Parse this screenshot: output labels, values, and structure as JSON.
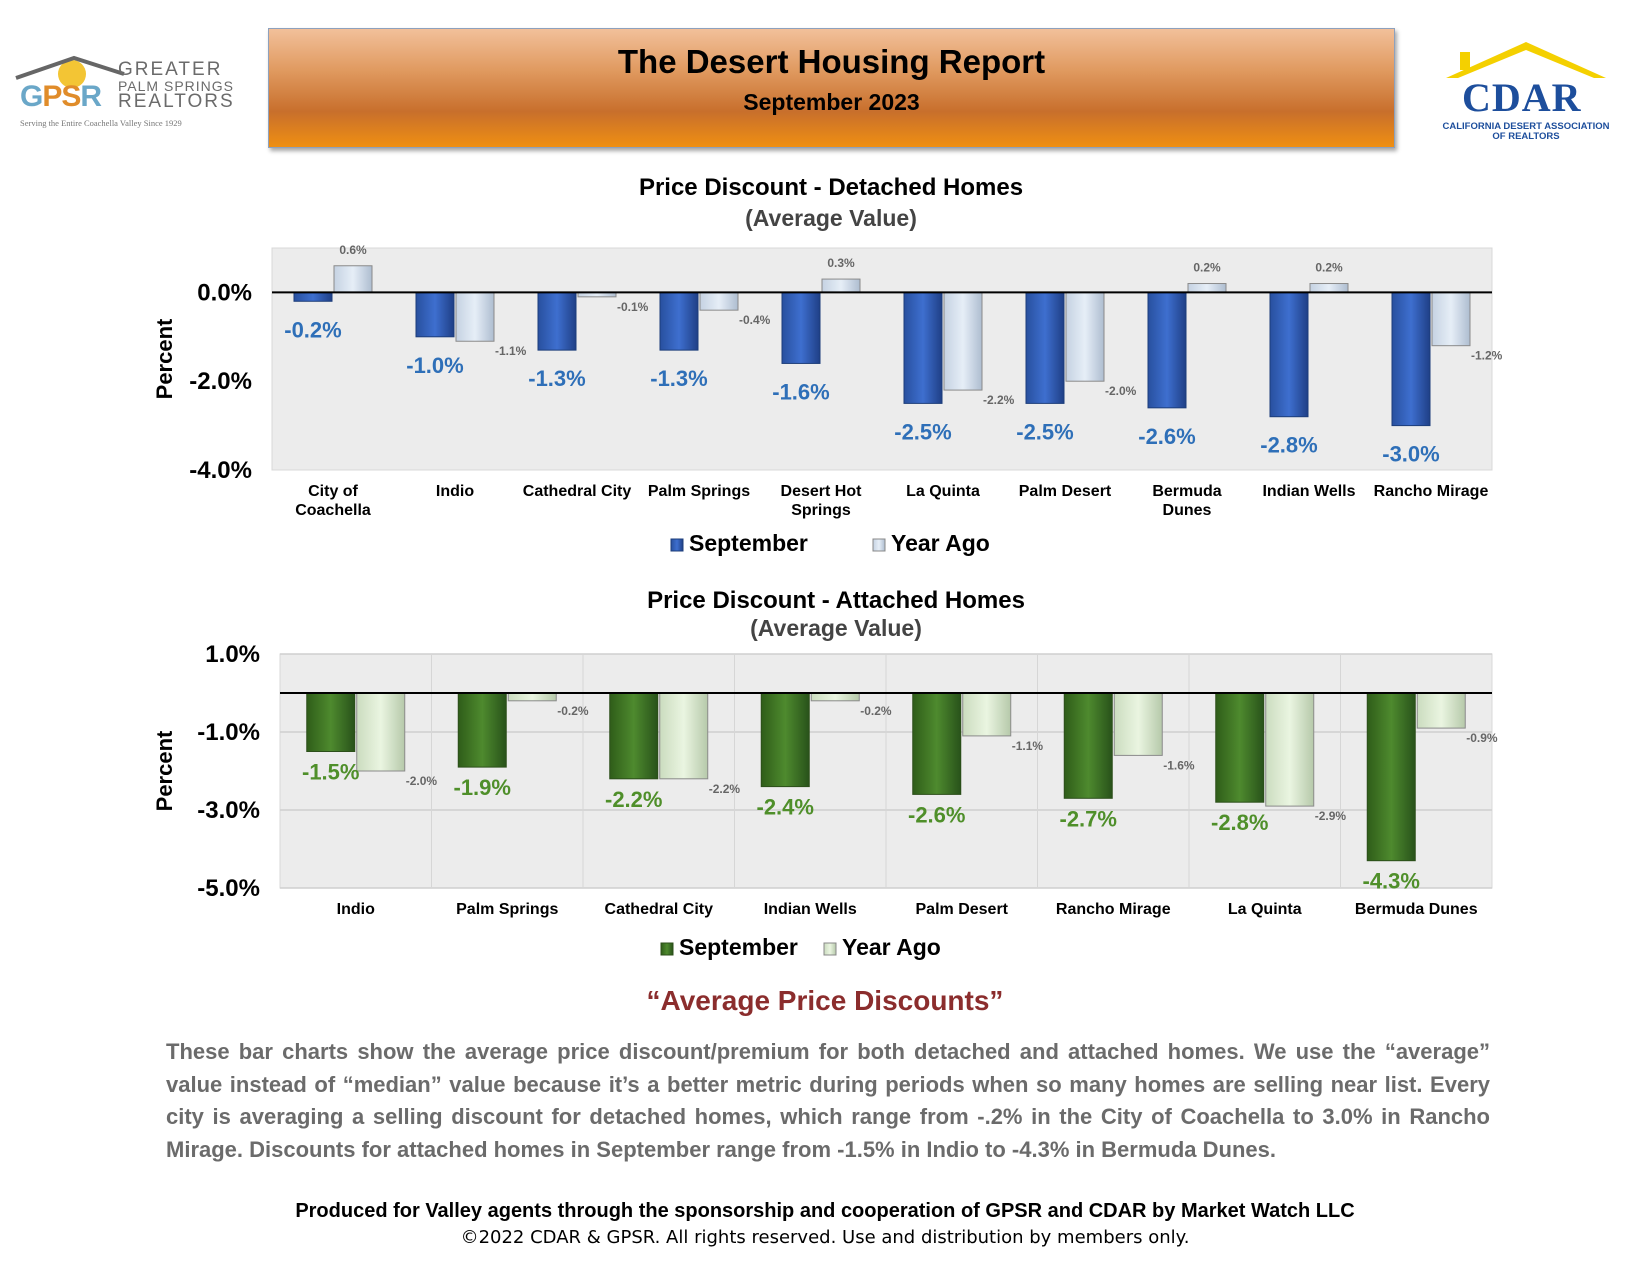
{
  "header": {
    "title": "The Desert Housing Report",
    "subtitle": "September 2023",
    "gpsr_logo": {
      "abbr_g": "G",
      "abbr_ps": "PS",
      "abbr_r": "R",
      "name_line1": "GREATER",
      "name_line2": "PALM SPRINGS",
      "name_line3": "REALTORS",
      "tagline": "Serving the Entire Coachella Valley Since 1929"
    },
    "cdar_logo": {
      "word": "CDAR",
      "line1": "CALIFORNIA DESERT ASSOCIATION",
      "line2": "OF REALTORS"
    }
  },
  "colors": {
    "detached_september": "#3e6fcf",
    "detached_year_ago": "#e6eef7",
    "attached_september": "#4e8a2e",
    "attached_year_ago": "#eaf5e1",
    "detached_label": "#2e6fb8",
    "attached_label": "#4f8f2a",
    "plot_bg": "#ececec",
    "quote_title": "#8b2d2d"
  },
  "chart_data": [
    {
      "type": "bar",
      "title": "Price Discount - Detached Homes",
      "subtitle": "(Average Value)",
      "ylabel": "Percent",
      "ylim": [
        -4.0,
        1.0
      ],
      "yticks": [
        0.0,
        -2.0,
        -4.0
      ],
      "ytick_labels": [
        "0.0%",
        "-2.0%",
        "-4.0%"
      ],
      "categories": [
        [
          "City of",
          "Coachella"
        ],
        [
          "Indio"
        ],
        [
          "Cathedral City"
        ],
        [
          "Palm Springs"
        ],
        [
          "Desert Hot",
          "Springs"
        ],
        [
          "La Quinta"
        ],
        [
          "Palm Desert"
        ],
        [
          "Bermuda",
          "Dunes"
        ],
        [
          "Indian Wells"
        ],
        [
          "Rancho Mirage"
        ]
      ],
      "series": [
        {
          "name": "September",
          "values": [
            -0.2,
            -1.0,
            -1.3,
            -1.3,
            -1.6,
            -2.5,
            -2.5,
            -2.6,
            -2.8,
            -3.0
          ],
          "labels": [
            "-0.2%",
            "-1.0%",
            "-1.3%",
            "-1.3%",
            "-1.6%",
            "-2.5%",
            "-2.5%",
            "-2.6%",
            "-2.8%",
            "-3.0%"
          ]
        },
        {
          "name": "Year Ago",
          "values": [
            0.6,
            -1.1,
            -0.1,
            -0.4,
            0.3,
            -2.2,
            -2.0,
            0.2,
            0.2,
            -1.2
          ],
          "labels": [
            "0.6%",
            "-1.1%",
            "-0.1%",
            "-0.4%",
            "0.3%",
            "-2.2%",
            "-2.0%",
            "0.2%",
            "0.2%",
            "-1.2%"
          ]
        }
      ],
      "legend": [
        "September",
        "Year Ago"
      ],
      "grid": false
    },
    {
      "type": "bar",
      "title": "Price Discount - Attached Homes",
      "subtitle": "(Average Value)",
      "ylabel": "Percent",
      "ylim": [
        -5.0,
        1.0
      ],
      "yticks": [
        1.0,
        -1.0,
        -3.0,
        -5.0
      ],
      "ytick_labels": [
        "1.0%",
        "-1.0%",
        "-3.0%",
        "-5.0%"
      ],
      "categories": [
        [
          "Indio"
        ],
        [
          "Palm Springs"
        ],
        [
          "Cathedral City"
        ],
        [
          "Indian Wells"
        ],
        [
          "Palm Desert"
        ],
        [
          "Rancho Mirage"
        ],
        [
          "La Quinta"
        ],
        [
          "Bermuda Dunes"
        ]
      ],
      "series": [
        {
          "name": "September",
          "values": [
            -1.5,
            -1.9,
            -2.2,
            -2.4,
            -2.6,
            -2.7,
            -2.8,
            -4.3
          ],
          "labels": [
            "-1.5%",
            "-1.9%",
            "-2.2%",
            "-2.4%",
            "-2.6%",
            "-2.7%",
            "-2.8%",
            "-4.3%"
          ]
        },
        {
          "name": "Year Ago",
          "values": [
            -2.0,
            -0.2,
            -2.2,
            -0.2,
            -1.1,
            -1.6,
            -2.9,
            -0.9
          ],
          "labels": [
            "-2.0%",
            "-0.2%",
            "-2.2%",
            "-0.2%",
            "-1.1%",
            "-1.6%",
            "-2.9%",
            "-0.9%"
          ]
        }
      ],
      "legend": [
        "September",
        "Year Ago"
      ],
      "grid": true
    }
  ],
  "commentary": {
    "title": "“Average Price Discounts”",
    "body": "These bar charts show the average price discount/premium for both detached and attached homes. We use the “average” value instead of “median” value because it’s a better metric during periods when so many homes are selling near list. Every city is averaging a selling discount for detached homes, which range from -.2% in the City of Coachella to 3.0% in Rancho Mirage. Discounts for attached homes in September range from -1.5% in Indio to -4.3% in Bermuda Dunes."
  },
  "footer": {
    "produced": "Produced for Valley agents through the sponsorship and cooperation of GPSR and CDAR by Market Watch LLC",
    "copyright": "©2022 CDAR & GPSR.  All rights reserved.  Use and distribution by members only."
  }
}
